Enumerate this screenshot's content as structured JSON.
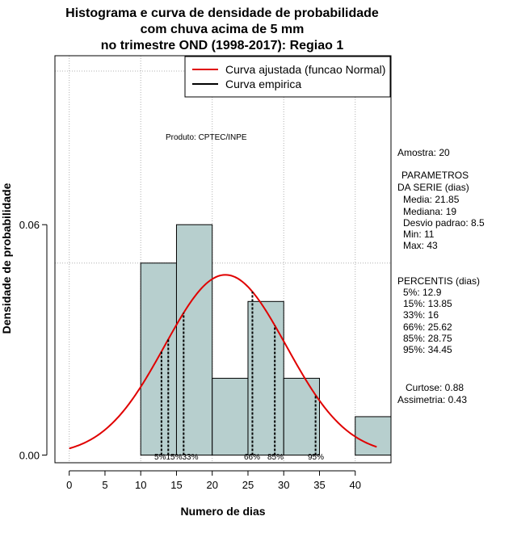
{
  "chart_data": {
    "type": "histogram",
    "title_lines": [
      "Histograma e curva de densidade de probabilidade",
      "com chuva acima de 5 mm",
      "no trimestre OND (1998-2017): Regiao 1"
    ],
    "xlabel": "Numero de dias",
    "ylabel": "Densidade de probabilidade",
    "xlim": [
      -2,
      45
    ],
    "ylim": [
      -0.002,
      0.104
    ],
    "x_ticks": [
      0,
      5,
      10,
      15,
      20,
      25,
      30,
      35,
      40
    ],
    "y_ticks": [
      0.0,
      0.06
    ],
    "y_tick_labels": [
      "0.00",
      "0.06"
    ],
    "bins": [
      {
        "x0": 10,
        "x1": 15,
        "density": 0.05
      },
      {
        "x0": 15,
        "x1": 20,
        "density": 0.06
      },
      {
        "x0": 20,
        "x1": 25,
        "density": 0.02
      },
      {
        "x0": 25,
        "x1": 30,
        "density": 0.04
      },
      {
        "x0": 30,
        "x1": 35,
        "density": 0.02
      },
      {
        "x0": 35,
        "x1": 40,
        "density": 0.0
      },
      {
        "x0": 40,
        "x1": 45,
        "density": 0.01
      }
    ],
    "grid_x": [
      0,
      10,
      20,
      30,
      40
    ],
    "grid_y": [
      0.05,
      0.1
    ],
    "normal_curve": {
      "mean": 21.85,
      "sd": 8.5,
      "x_from": 0,
      "x_to": 43
    },
    "percentile_lines": [
      {
        "x": 12.9,
        "label": "5%"
      },
      {
        "x": 13.85,
        "label": "15%"
      },
      {
        "x": 16,
        "label": "33%"
      },
      {
        "x": 25.62,
        "label": "66%"
      },
      {
        "x": 28.75,
        "label": "85%"
      },
      {
        "x": 34.45,
        "label": "95%"
      }
    ],
    "percentile_row_label": "5%15%33%",
    "legend": {
      "position": "top-right",
      "entries": [
        {
          "label": "Curva ajustada (funcao Normal)",
          "color": "#e00000"
        },
        {
          "label": "Curva empirica",
          "color": "#000000"
        }
      ]
    },
    "annotation": "Produto: CPTEC/INPE",
    "colors": {
      "bar_fill": "#b7cfce",
      "curve": "#e00000",
      "grid": "#b0b0b0"
    }
  },
  "side_panel": {
    "sample": "Amostra: 20",
    "params_heading_1": "PARAMETROS",
    "params_heading_2": "DA SERIE (dias)",
    "media": "Media: 21.85",
    "mediana": "Mediana: 19",
    "desvio": "Desvio padrao: 8.5",
    "min": "Min: 11",
    "max": "Max: 43",
    "percentis_heading": "PERCENTIS (dias)",
    "p5": "5%: 12.9",
    "p15": "15%: 13.85",
    "p33": "33%: 16",
    "p66": "66%: 25.62",
    "p85": "85%: 28.75",
    "p95": "95%: 34.45",
    "curtose": "Curtose: 0.88",
    "assimetria": "Assimetria: 0.43"
  }
}
